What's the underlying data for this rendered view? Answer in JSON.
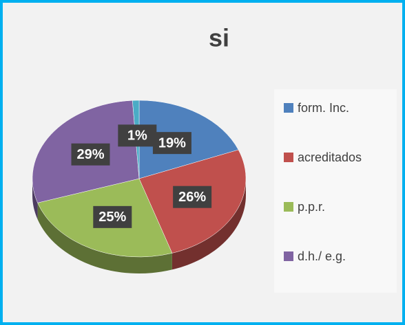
{
  "chart_data": {
    "type": "pie",
    "title": "si",
    "categories": [
      "form. Inc.",
      "acreditados",
      "p.p.r.",
      "d.h./ e.g.",
      null
    ],
    "values": [
      19,
      26,
      25,
      29,
      1
    ],
    "value_labels": [
      "19%",
      "26%",
      "25%",
      "29%",
      "1%"
    ],
    "colors": [
      "#4f81bd",
      "#c0504d",
      "#9bbb59",
      "#8064a2",
      "#4bacc6"
    ],
    "legend": "right"
  }
}
